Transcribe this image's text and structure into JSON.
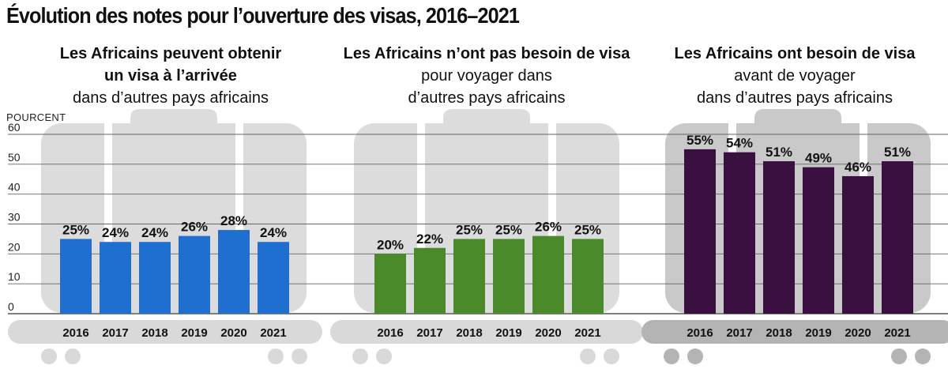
{
  "title": "Évolution des notes pour l’ouverture des visas, 2016–2021",
  "y_unit": "POURCENT",
  "panels": [
    {
      "title_bold": [
        "Les Africains peuvent obtenir",
        "un visa à l’arrivée"
      ],
      "title_normal": [
        "dans d’autres pays africains"
      ]
    },
    {
      "title_bold": [
        "Les Africains n’ont pas besoin de visa"
      ],
      "title_normal": [
        "pour voyager dans",
        "d’autres pays africains"
      ]
    },
    {
      "title_bold": [
        "Les Africains ont besoin de visa"
      ],
      "title_normal": [
        "avant de voyager",
        "dans d’autres pays africains"
      ]
    }
  ],
  "chart_data": [
    {
      "type": "bar",
      "title": "Les Africains peuvent obtenir un visa à l’arrivée dans d’autres pays africains",
      "categories": [
        "2016",
        "2017",
        "2018",
        "2019",
        "2020",
        "2021"
      ],
      "values": [
        25,
        24,
        24,
        26,
        28,
        24
      ],
      "data_labels": [
        "25%",
        "24%",
        "24%",
        "26%",
        "28%",
        "24%"
      ],
      "color": "#1f6fd1",
      "ylabel": "POURCENT",
      "ylim": [
        0,
        60
      ],
      "yticks": [
        0,
        10,
        20,
        30,
        40,
        50,
        60
      ],
      "grid": true
    },
    {
      "type": "bar",
      "title": "Les Africains n’ont pas besoin de visa pour voyager dans d’autres pays africains",
      "categories": [
        "2016",
        "2017",
        "2018",
        "2019",
        "2020",
        "2021"
      ],
      "values": [
        20,
        22,
        25,
        25,
        26,
        25
      ],
      "data_labels": [
        "20%",
        "22%",
        "25%",
        "25%",
        "26%",
        "25%"
      ],
      "color": "#4a8a2a",
      "ylabel": "POURCENT",
      "ylim": [
        0,
        60
      ],
      "yticks": [
        0,
        10,
        20,
        30,
        40,
        50,
        60
      ],
      "grid": true
    },
    {
      "type": "bar",
      "title": "Les Africains ont besoin de visa avant de voyager dans d’autres pays africains",
      "categories": [
        "2016",
        "2017",
        "2018",
        "2019",
        "2020",
        "2021"
      ],
      "values": [
        55,
        54,
        51,
        49,
        46,
        51
      ],
      "data_labels": [
        "55%",
        "54%",
        "51%",
        "49%",
        "46%",
        "51%"
      ],
      "color": "#3a1040",
      "ylabel": "POURCENT",
      "ylim": [
        0,
        60
      ],
      "yticks": [
        0,
        10,
        20,
        30,
        40,
        50,
        60
      ],
      "grid": true
    }
  ]
}
